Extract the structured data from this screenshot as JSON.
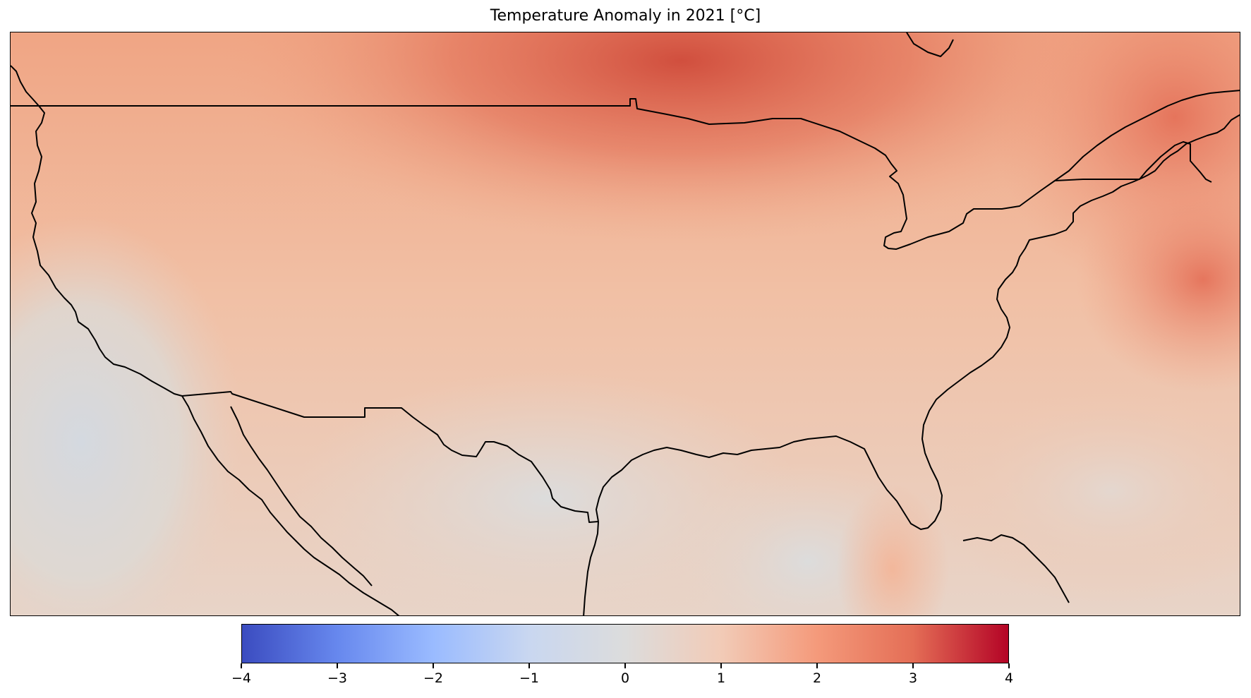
{
  "map": {
    "title": "Temperature Anomaly in 2021 [°C]",
    "colormap": "coolwarm",
    "colorbar": {
      "min": -4,
      "max": 4,
      "tick_labels": [
        "−4",
        "−3",
        "−2",
        "−1",
        "0",
        "1",
        "2",
        "3",
        "4"
      ],
      "tick_values": [
        -4,
        -3,
        -2,
        -1,
        0,
        1,
        2,
        3,
        4
      ],
      "colors": [
        "#3b4cc0",
        "#6788ee",
        "#9abbff",
        "#c9d7f0",
        "#dcdcdc",
        "#f2cbb7",
        "#f49a7b",
        "#e46e56",
        "#b40426"
      ]
    },
    "regions": [
      {
        "name": "Canada",
        "anomaly": 2.6
      },
      {
        "name": "United States",
        "anomaly": 1.2
      },
      {
        "name": "Mexico",
        "anomaly": 0.5
      },
      {
        "name": "Gulf of Mexico",
        "anomaly": 0.2
      },
      {
        "name": "Eastern Pacific",
        "anomaly": -0.2
      },
      {
        "name": "Western Atlantic",
        "anomaly": 1.8
      }
    ]
  }
}
